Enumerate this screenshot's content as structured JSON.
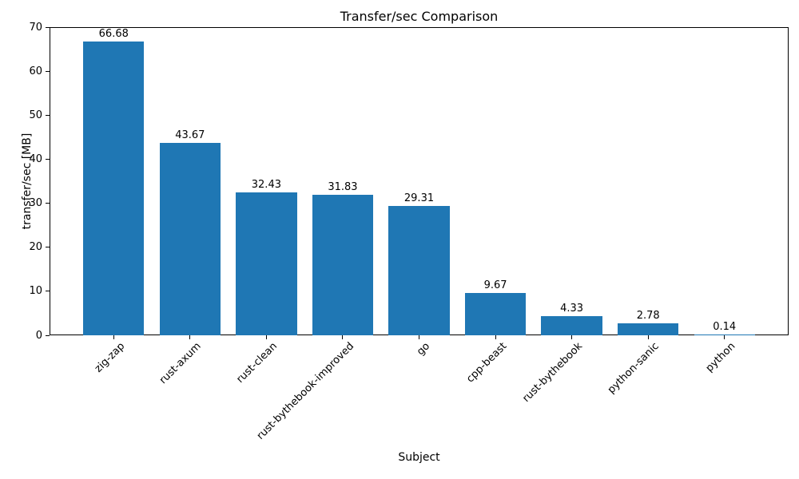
{
  "chart_data": {
    "type": "bar",
    "title": "Transfer/sec Comparison",
    "xlabel": "Subject",
    "ylabel": "transfer/sec [MB]",
    "categories": [
      "zig-zap",
      "rust-axum",
      "rust-clean",
      "rust-bythebook-improved",
      "go",
      "cpp-beast",
      "rust-bythebook",
      "python-sanic",
      "python"
    ],
    "values": [
      66.68,
      43.67,
      32.43,
      31.83,
      29.31,
      9.67,
      4.33,
      2.78,
      0.14
    ],
    "bar_labels": [
      "66.68",
      "43.67",
      "32.43",
      "31.83",
      "29.31",
      "9.67",
      "4.33",
      "2.78",
      "0.14"
    ],
    "ylim": [
      0,
      70
    ],
    "yticks": [
      0,
      10,
      20,
      30,
      40,
      50,
      60,
      70
    ],
    "bar_color": "#1f77b4",
    "grid": false,
    "legend": null,
    "tick_label_rotation_deg": 45
  }
}
